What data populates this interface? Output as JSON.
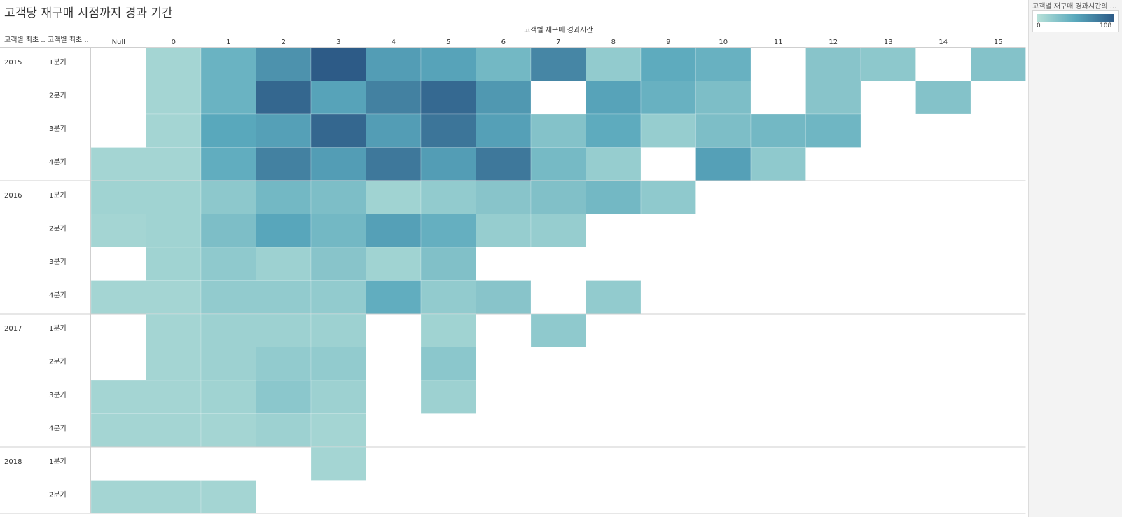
{
  "title": "고객당 재구매 시점까지 경과 기간",
  "legend": {
    "title": "고객별 재구매 경과시간의 ...",
    "min_label": "0",
    "max_label": "108",
    "color_low": "#b9e2d9",
    "color_mid": "#5aa9bd",
    "color_high": "#2d5b87"
  },
  "chart_data": {
    "type": "heatmap",
    "title": "고객당 재구매 시점까지 경과 기간",
    "xlabel": "고객별 재구매 경과시간",
    "row_header_labels": [
      "고객별 최초 ..",
      "고객별 최초 .."
    ],
    "x": [
      "Null",
      "0",
      "1",
      "2",
      "3",
      "4",
      "5",
      "6",
      "7",
      "8",
      "9",
      "10",
      "11",
      "12",
      "13",
      "14",
      "15"
    ],
    "years": [
      {
        "year": "2015",
        "quarters": [
          "1분기",
          "2분기",
          "3분기",
          "4분기"
        ]
      },
      {
        "year": "2016",
        "quarters": [
          "1분기",
          "2분기",
          "3분기",
          "4분기"
        ]
      },
      {
        "year": "2017",
        "quarters": [
          "1분기",
          "2분기",
          "3분기",
          "4분기"
        ]
      },
      {
        "year": "2018",
        "quarters": [
          "1분기",
          "2분기"
        ]
      }
    ],
    "color_range": [
      0,
      108
    ],
    "values": [
      [
        null,
        12,
        45,
        70,
        108,
        62,
        58,
        40,
        78,
        22,
        52,
        46,
        null,
        28,
        25,
        null,
        30
      ],
      [
        null,
        12,
        45,
        100,
        58,
        82,
        98,
        66,
        null,
        58,
        46,
        34,
        null,
        28,
        null,
        30,
        null
      ],
      [
        null,
        12,
        55,
        60,
        100,
        62,
        90,
        60,
        30,
        52,
        20,
        34,
        40,
        42,
        null,
        null,
        null
      ],
      [
        12,
        12,
        50,
        82,
        62,
        88,
        62,
        88,
        38,
        20,
        null,
        60,
        24,
        null,
        null,
        null,
        null
      ],
      [
        14,
        14,
        25,
        40,
        34,
        14,
        22,
        28,
        32,
        40,
        24,
        null,
        null,
        null,
        null,
        null,
        null
      ],
      [
        12,
        14,
        34,
        56,
        40,
        60,
        48,
        20,
        20,
        null,
        null,
        null,
        null,
        null,
        null,
        null,
        null
      ],
      [
        null,
        14,
        24,
        16,
        28,
        14,
        32,
        null,
        null,
        null,
        null,
        null,
        null,
        null,
        null,
        null,
        null
      ],
      [
        12,
        12,
        22,
        22,
        22,
        50,
        22,
        28,
        null,
        22,
        null,
        null,
        null,
        null,
        null,
        null,
        null
      ],
      [
        null,
        12,
        16,
        16,
        16,
        null,
        14,
        null,
        24,
        null,
        null,
        null,
        null,
        null,
        null,
        null,
        null
      ],
      [
        null,
        12,
        16,
        22,
        22,
        null,
        26,
        null,
        null,
        null,
        null,
        null,
        null,
        null,
        null,
        null,
        null
      ],
      [
        12,
        12,
        14,
        26,
        16,
        null,
        16,
        null,
        null,
        null,
        null,
        null,
        null,
        null,
        null,
        null,
        null
      ],
      [
        12,
        12,
        12,
        16,
        12,
        null,
        null,
        null,
        null,
        null,
        null,
        null,
        null,
        null,
        null,
        null,
        null
      ],
      [
        null,
        null,
        null,
        null,
        12,
        null,
        null,
        null,
        null,
        null,
        null,
        null,
        null,
        null,
        null,
        null,
        null
      ],
      [
        12,
        12,
        12,
        null,
        null,
        null,
        null,
        null,
        null,
        null,
        null,
        null,
        null,
        null,
        null,
        null,
        null
      ]
    ]
  }
}
